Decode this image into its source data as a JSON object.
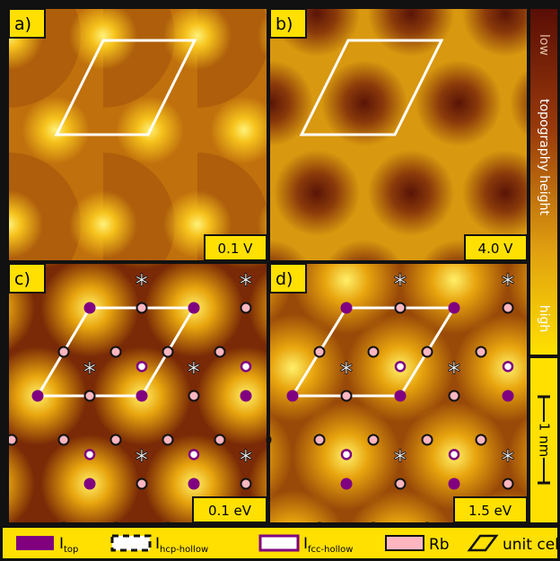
{
  "panels": [
    {
      "label": "a)",
      "bias": "0.1 V"
    },
    {
      "label": "b)",
      "bias": "4.0 V"
    },
    {
      "label": "c)",
      "bias": "0.1 eV"
    },
    {
      "label": "d)",
      "bias": "1.5 eV"
    }
  ],
  "colorbar": {
    "low": "low",
    "title": "topography height",
    "high": "high"
  },
  "scale_bar": "1 nm",
  "legend": [
    {
      "symbol": "I",
      "subscript": "top"
    },
    {
      "symbol": "I",
      "subscript": "hcp-hollow"
    },
    {
      "symbol": "I",
      "subscript": "fcc-hollow"
    },
    {
      "label": "Rb"
    },
    {
      "label": "unit cell"
    }
  ]
}
